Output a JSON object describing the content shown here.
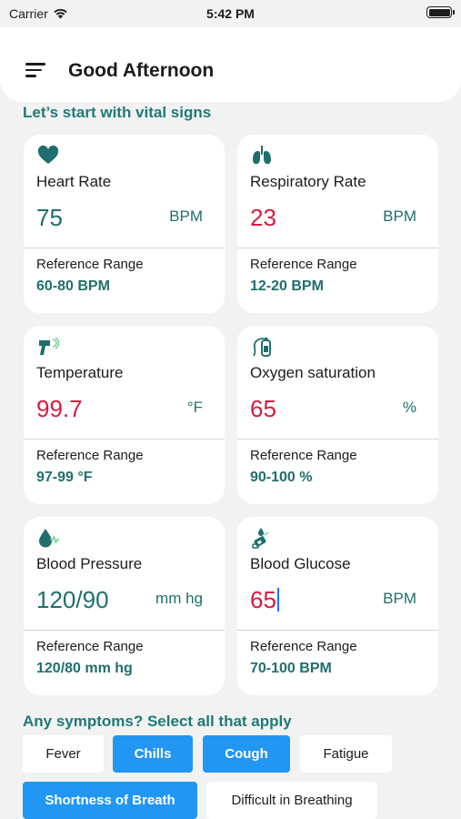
{
  "status_bar": {
    "carrier": "Carrier",
    "time": "5:42 PM"
  },
  "header": {
    "title": "Good Afternoon",
    "menu_icon": "hamburger-menu-icon"
  },
  "vitals_section": {
    "title": "Let’s start with vital signs",
    "cards": [
      {
        "name": "Heart Rate",
        "icon": "heart-icon",
        "value": "75",
        "unit": "BPM",
        "status": "normal",
        "ref_label": "Reference Range",
        "ref_value": "60-80 BPM"
      },
      {
        "name": "Respiratory Rate",
        "icon": "lungs-icon",
        "value": "23",
        "unit": "BPM",
        "status": "alert",
        "ref_label": "Reference Range",
        "ref_value": "12-20 BPM"
      },
      {
        "name": "Temperature",
        "icon": "thermometer-gun-icon",
        "value": "99.7",
        "unit": "°F",
        "status": "alert",
        "ref_label": "Reference Range",
        "ref_value": "97-99 °F"
      },
      {
        "name": "Oxygen saturation",
        "icon": "oxygen-tank-icon",
        "value": "65",
        "unit": "%",
        "status": "alert",
        "ref_label": "Reference Range",
        "ref_value": "90-100 %"
      },
      {
        "name": "Blood Pressure",
        "icon": "blood-drop-icon",
        "value": "120/90",
        "unit": "mm hg",
        "status": "normal",
        "ref_label": "Reference Range",
        "ref_value": "120/80 mm hg"
      },
      {
        "name": "Blood Glucose",
        "icon": "glucose-meter-icon",
        "value": "65",
        "unit": "BPM",
        "status": "alert",
        "ref_label": "Reference Range",
        "ref_value": "70-100 BPM"
      }
    ]
  },
  "symptoms_section": {
    "title": "Any symptoms? Select all that apply",
    "chips": [
      {
        "label": "Fever",
        "selected": false
      },
      {
        "label": "Chills",
        "selected": true
      },
      {
        "label": "Cough",
        "selected": true
      },
      {
        "label": "Fatigue",
        "selected": false
      },
      {
        "label": "Shortness of Breath",
        "selected": true
      },
      {
        "label": "Difficult in Breathing",
        "selected": false
      }
    ]
  },
  "colors": {
    "accent_teal": "#1f7a78",
    "alert_red": "#d81b3f",
    "chip_selected": "#2196f3",
    "background": "#f2f2f2"
  }
}
